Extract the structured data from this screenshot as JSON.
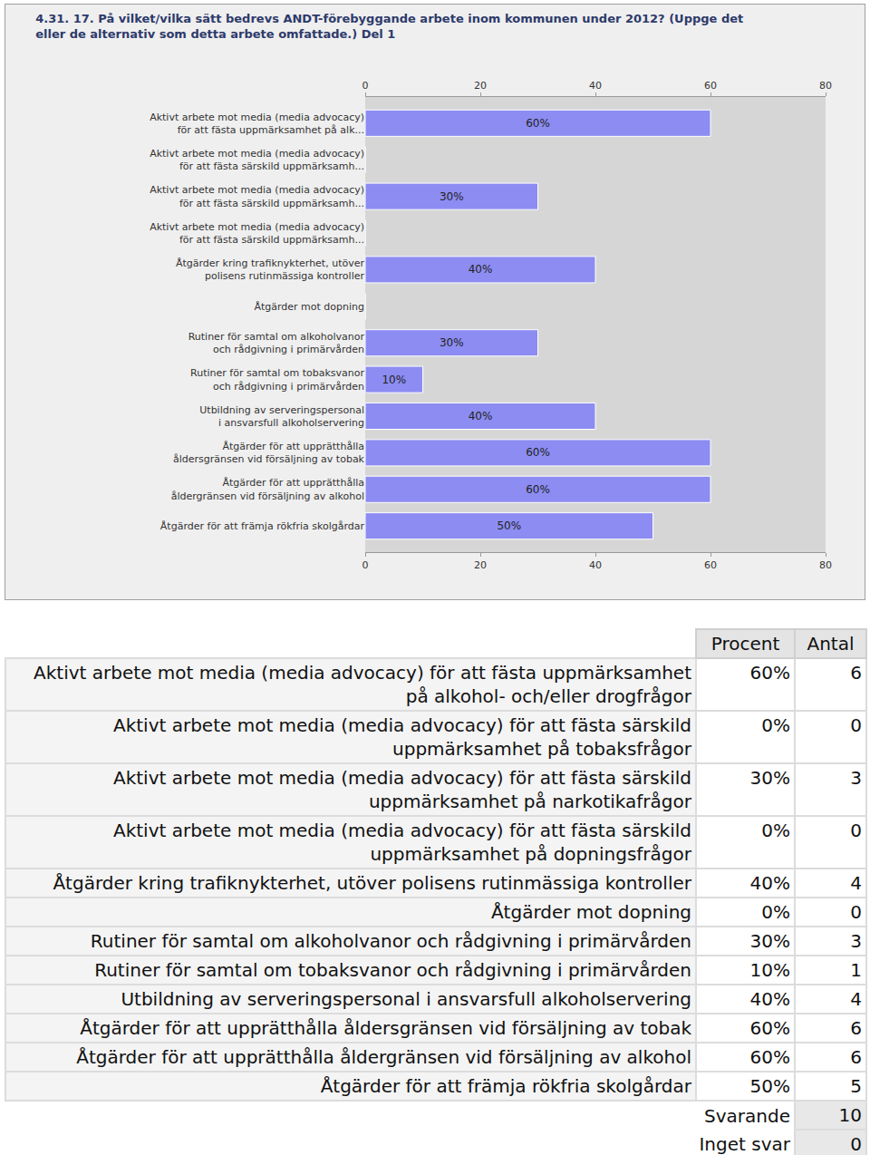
{
  "chart_data": {
    "type": "bar",
    "orientation": "horizontal",
    "title": "4.31. 17. På vilket/vilka sätt bedrevs ANDT-förebyggande arbete inom kommunen under 2012? (Uppge det\neller de alternativ som detta arbete omfattade.) Del 1",
    "categories": [
      "Aktivt arbete mot media (media advocacy)\nför att fästa uppmärksamhet på alk...",
      "Aktivt arbete mot media (media advocacy)\nför att fästa särskild uppmärksamh...",
      "Aktivt arbete mot media (media advocacy)\nför att fästa särskild uppmärksamh...",
      "Aktivt arbete mot media (media advocacy)\nför att fästa särskild uppmärksamh...",
      "Åtgärder kring trafiknykterhet, utöver\npolisens rutinmässiga kontroller",
      "Åtgärder mot dopning",
      "Rutiner för samtal om alkoholvanor\noch rådgivning i primärvården",
      "Rutiner för samtal om tobaksvanor\noch rådgivning i primärvården",
      "Utbildning av serveringspersonal\ni ansvarsfull alkoholservering",
      "Åtgärder för att upprätthålla\nåldersgränsen vid försäljning av tobak",
      "Åtgärder för att upprätthålla\nåldergränsen vid försäljning av alkohol",
      "Åtgärder för att främja rökfria skolgårdar"
    ],
    "values": [
      60,
      0,
      30,
      0,
      40,
      0,
      30,
      10,
      40,
      60,
      60,
      50
    ],
    "value_labels": [
      "60%",
      null,
      "30%",
      null,
      "40%",
      null,
      "30%",
      "10%",
      "40%",
      "60%",
      "60%",
      "50%"
    ],
    "data_labels": true,
    "color": "#8c8cf2",
    "xlim": [
      0,
      80
    ],
    "xticks": [
      0,
      20,
      40,
      60,
      80
    ],
    "grid": false
  },
  "table": {
    "header": [
      "Procent",
      "Antal"
    ],
    "rows": [
      [
        "Aktivt arbete mot media (media advocacy) för att fästa uppmärksamhet på alkohol- och/eller drogfrågor",
        "60%",
        6
      ],
      [
        "Aktivt arbete mot media (media advocacy) för att fästa särskild uppmärksamhet på tobaksfrågor",
        "0%",
        0
      ],
      [
        "Aktivt arbete mot media (media advocacy) för att fästa särskild uppmärksamhet på narkotikafrågor",
        "30%",
        3
      ],
      [
        "Aktivt arbete mot media (media advocacy) för att fästa särskild uppmärksamhet på dopningsfrågor",
        "0%",
        0
      ],
      [
        "Åtgärder kring trafiknykterhet, utöver polisens rutinmässiga kontroller",
        "40%",
        4
      ],
      [
        "Åtgärder mot dopning",
        "0%",
        0
      ],
      [
        "Rutiner för samtal om alkoholvanor och rådgivning i primärvården",
        "30%",
        3
      ],
      [
        "Rutiner för samtal om tobaksvanor och rådgivning i primärvården",
        "10%",
        1
      ],
      [
        "Utbildning av serveringspersonal i ansvarsfull alkoholservering",
        "40%",
        4
      ],
      [
        "Åtgärder för att upprätthålla åldersgränsen vid försäljning av tobak",
        "60%",
        6
      ],
      [
        "Åtgärder för att upprätthålla åldergränsen vid försäljning av alkohol",
        "60%",
        6
      ],
      [
        "Åtgärder för att främja rökfria skolgårdar",
        "50%",
        5
      ]
    ],
    "summary": [
      [
        "Svarande",
        10
      ],
      [
        "Inget svar",
        0
      ]
    ]
  }
}
